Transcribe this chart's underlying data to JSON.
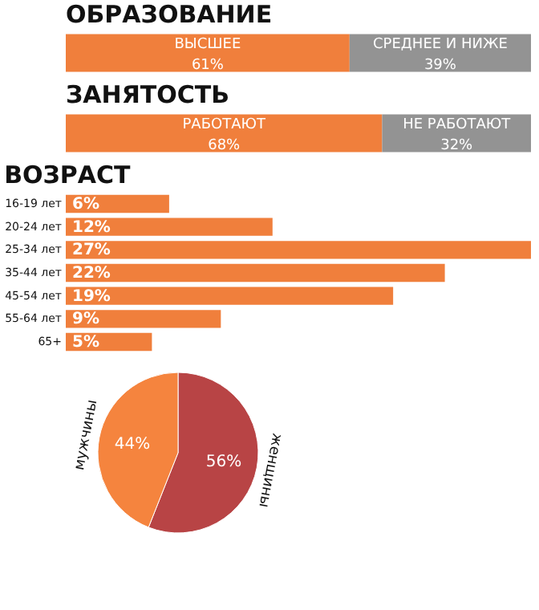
{
  "chart_data": [
    {
      "type": "bar",
      "title": "ОБРАЗОВАНИЕ",
      "orientation": "horizontal",
      "stacked": true,
      "categories": [
        null
      ],
      "legend": false,
      "tick_labels": false,
      "series": [
        {
          "name": "ВЫСШЕЕ",
          "color": "#f07f3c",
          "values": [
            61
          ],
          "value_labels": [
            "61%"
          ]
        },
        {
          "name": "СРЕДНЕЕ И НИЖЕ",
          "color": "#939393",
          "values": [
            39
          ],
          "value_labels": [
            "39%"
          ]
        }
      ]
    },
    {
      "type": "bar",
      "title": "ЗАНЯТОСТЬ",
      "orientation": "horizontal",
      "stacked": true,
      "categories": [
        null
      ],
      "legend": false,
      "tick_labels": false,
      "series": [
        {
          "name": "РАБОТАЮТ",
          "color": "#f07f3c",
          "values": [
            68
          ],
          "value_labels": [
            "68%"
          ]
        },
        {
          "name": "НЕ РАБОТАЮТ",
          "color": "#939393",
          "values": [
            32
          ],
          "value_labels": [
            "32%"
          ]
        }
      ]
    },
    {
      "type": "bar",
      "title": "ВОЗРАСТ",
      "orientation": "horizontal",
      "categories": [
        "16-19 лет",
        "20-24 лет",
        "25-34 лет",
        "35-44 лет",
        "45-54 лет",
        "55-64 лет",
        "65+"
      ],
      "values": [
        6,
        12,
        27,
        22,
        19,
        9,
        5
      ],
      "value_labels": [
        "6%",
        "12%",
        "27%",
        "22%",
        "19%",
        "9%",
        "5%"
      ],
      "color": "#f07f3c",
      "tick_labels": "y"
    },
    {
      "type": "pie",
      "categories": [
        "мужчины",
        "женщины"
      ],
      "values": [
        44,
        56
      ],
      "value_labels": [
        "44%",
        "56%"
      ],
      "colors": [
        "#f5843e",
        "#b84445"
      ]
    }
  ]
}
